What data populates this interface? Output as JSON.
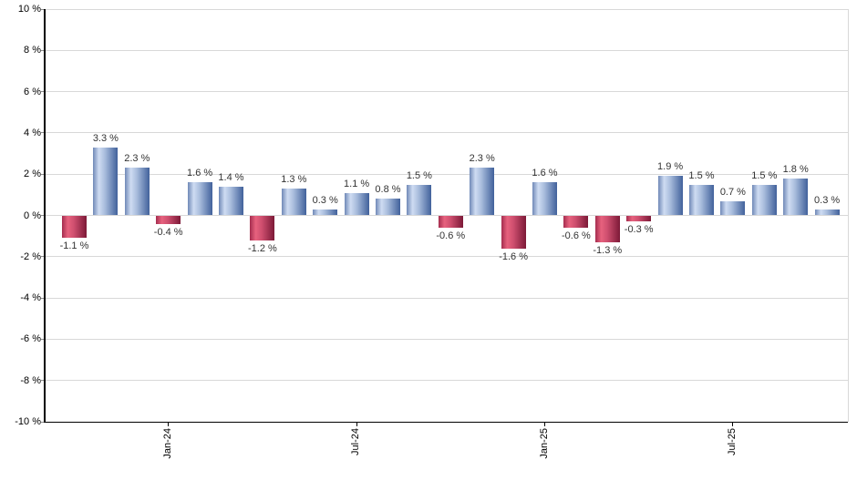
{
  "chart_data": {
    "type": "bar",
    "title": "",
    "values": [
      -1.1,
      3.3,
      2.3,
      -0.4,
      1.6,
      1.4,
      -1.2,
      1.3,
      0.3,
      1.1,
      0.8,
      1.5,
      -0.6,
      2.3,
      -1.6,
      1.6,
      -0.6,
      -1.3,
      -0.3,
      1.9,
      1.5,
      0.7,
      1.5,
      1.8,
      0.3
    ],
    "bar_labels": [
      "-1.1 %",
      "3.3 %",
      "2.3 %",
      "-0.4 %",
      "1.6 %",
      "1.4 %",
      "-1.2 %",
      "1.3 %",
      "0.3 %",
      "1.1 %",
      "0.8 %",
      "1.5 %",
      "-0.6 %",
      "2.3 %",
      "-1.6 %",
      "1.6 %",
      "-0.6 %",
      "-1.3 %",
      "-0.3 %",
      "1.9 %",
      "1.5 %",
      "0.7 %",
      "1.5 %",
      "1.8 %",
      "0.3 %"
    ],
    "x_axis": {
      "tick_labels": [
        "Jan-24",
        "Jul-24",
        "Jan-25",
        "Jul-25"
      ],
      "tick_bar_indices": [
        3,
        9,
        15,
        21
      ]
    },
    "y_axis": {
      "tick_labels": [
        "10 %",
        "8 %",
        "6 %",
        "4 %",
        "2 %",
        "0 %",
        "-2 %",
        "-4 %",
        "-6 %",
        "-8 %",
        "-10 %"
      ],
      "max": 10,
      "min": -10,
      "step": 2
    },
    "ylim": [
      -10,
      10
    ],
    "grid": true,
    "legend": "none",
    "colors": {
      "positive_bar_gradient": [
        "#7089b7",
        "#cfdcf2",
        "#a9bddd",
        "#41619b"
      ],
      "negative_bar_gradient": [
        "#a52d4f",
        "#e7627e",
        "#cf4f6f",
        "#7c1937"
      ],
      "gridline": "#d8d8d8",
      "axis": "#000000",
      "label_text": "#333333"
    }
  }
}
